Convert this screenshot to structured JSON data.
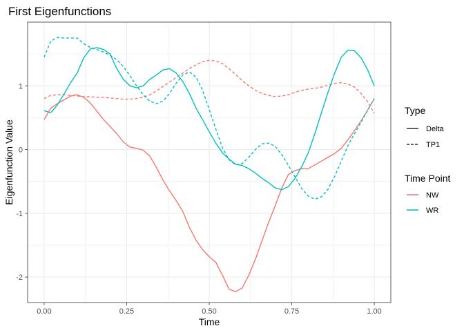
{
  "chart_data": {
    "type": "line",
    "title": "First Eigenfunctions",
    "xlabel": "Time",
    "ylabel": "Eigenfunction Value",
    "xlim": [
      -0.05,
      1.05
    ],
    "ylim": [
      -2.4,
      2.0
    ],
    "x_ticks": [
      0,
      0.25,
      0.5,
      0.75,
      1
    ],
    "x_tick_labels": [
      "0.00",
      "0.25",
      "0.50",
      "0.75",
      "1.00"
    ],
    "y_ticks": [
      -2,
      -1,
      0,
      1
    ],
    "y_tick_labels": [
      "-2",
      "-1",
      "0",
      "1"
    ],
    "grid": true,
    "legend_position": "right",
    "legend_linetype": {
      "title": "Type",
      "entries": [
        {
          "label": "Delta",
          "dash": "solid"
        },
        {
          "label": "TP1",
          "dash": "dashed"
        }
      ]
    },
    "legend_color": {
      "title": "Time Point",
      "entries": [
        {
          "label": "NW",
          "color": "#F8766D"
        },
        {
          "label": "WR",
          "color": "#00BFC4"
        }
      ]
    },
    "series": [
      {
        "time_point": "NW",
        "type": "Delta",
        "color": "#F8766D",
        "dash": "solid",
        "x": [
          0,
          0.02,
          0.04,
          0.06,
          0.08,
          0.1,
          0.12,
          0.14,
          0.16,
          0.18,
          0.2,
          0.22,
          0.24,
          0.26,
          0.28,
          0.3,
          0.32,
          0.34,
          0.36,
          0.38,
          0.4,
          0.42,
          0.44,
          0.46,
          0.48,
          0.5,
          0.52,
          0.54,
          0.56,
          0.58,
          0.6,
          0.62,
          0.64,
          0.66,
          0.68,
          0.7,
          0.72,
          0.74,
          0.76,
          0.78,
          0.8,
          0.82,
          0.84,
          0.86,
          0.88,
          0.9,
          0.92,
          0.94,
          0.96,
          0.98,
          1.0
        ],
        "y": [
          0.47,
          0.65,
          0.72,
          0.78,
          0.84,
          0.86,
          0.82,
          0.73,
          0.6,
          0.47,
          0.36,
          0.25,
          0.12,
          0.04,
          0.02,
          -0.01,
          -0.1,
          -0.28,
          -0.48,
          -0.65,
          -0.8,
          -0.97,
          -1.22,
          -1.42,
          -1.57,
          -1.68,
          -1.77,
          -1.97,
          -2.19,
          -2.23,
          -2.17,
          -1.97,
          -1.72,
          -1.43,
          -1.14,
          -0.88,
          -0.6,
          -0.39,
          -0.33,
          -0.3,
          -0.3,
          -0.24,
          -0.18,
          -0.12,
          -0.06,
          0.02,
          0.15,
          0.3,
          0.45,
          0.62,
          0.8
        ]
      },
      {
        "time_point": "NW",
        "type": "TP1",
        "color": "#F8766D",
        "dash": "dashed",
        "x": [
          0,
          0.02,
          0.04,
          0.06,
          0.08,
          0.1,
          0.12,
          0.14,
          0.16,
          0.18,
          0.2,
          0.22,
          0.24,
          0.26,
          0.28,
          0.3,
          0.32,
          0.34,
          0.36,
          0.38,
          0.4,
          0.42,
          0.44,
          0.46,
          0.48,
          0.5,
          0.52,
          0.54,
          0.56,
          0.58,
          0.6,
          0.62,
          0.64,
          0.66,
          0.68,
          0.7,
          0.72,
          0.74,
          0.76,
          0.78,
          0.8,
          0.82,
          0.84,
          0.86,
          0.88,
          0.9,
          0.92,
          0.94,
          0.96,
          0.98,
          1.0
        ],
        "y": [
          0.8,
          0.85,
          0.86,
          0.86,
          0.85,
          0.84,
          0.83,
          0.83,
          0.82,
          0.82,
          0.81,
          0.8,
          0.79,
          0.79,
          0.8,
          0.82,
          0.86,
          0.92,
          0.99,
          1.06,
          1.13,
          1.2,
          1.27,
          1.33,
          1.38,
          1.4,
          1.39,
          1.35,
          1.27,
          1.18,
          1.08,
          1.0,
          0.93,
          0.88,
          0.85,
          0.83,
          0.84,
          0.86,
          0.9,
          0.93,
          0.95,
          0.96,
          0.98,
          1.01,
          1.04,
          1.05,
          1.03,
          0.98,
          0.88,
          0.75,
          0.57
        ]
      },
      {
        "time_point": "WR",
        "type": "Delta",
        "color": "#00BFC4",
        "dash": "solid",
        "x": [
          0,
          0.02,
          0.04,
          0.06,
          0.08,
          0.1,
          0.12,
          0.14,
          0.16,
          0.18,
          0.2,
          0.22,
          0.24,
          0.26,
          0.28,
          0.3,
          0.32,
          0.34,
          0.36,
          0.38,
          0.4,
          0.42,
          0.44,
          0.46,
          0.48,
          0.5,
          0.52,
          0.54,
          0.56,
          0.58,
          0.6,
          0.62,
          0.64,
          0.66,
          0.68,
          0.7,
          0.72,
          0.74,
          0.76,
          0.78,
          0.8,
          0.82,
          0.84,
          0.86,
          0.88,
          0.9,
          0.92,
          0.94,
          0.96,
          0.98,
          1.0
        ],
        "y": [
          0.61,
          0.58,
          0.7,
          0.87,
          1.05,
          1.2,
          1.44,
          1.58,
          1.6,
          1.57,
          1.5,
          1.27,
          1.1,
          1.0,
          0.97,
          1.0,
          1.1,
          1.17,
          1.25,
          1.27,
          1.2,
          1.07,
          0.88,
          0.65,
          0.47,
          0.28,
          0.1,
          -0.05,
          -0.15,
          -0.23,
          -0.25,
          -0.3,
          -0.37,
          -0.45,
          -0.52,
          -0.6,
          -0.63,
          -0.58,
          -0.45,
          -0.27,
          -0.05,
          0.25,
          0.58,
          0.9,
          1.2,
          1.45,
          1.56,
          1.55,
          1.44,
          1.25,
          1.0
        ]
      },
      {
        "time_point": "WR",
        "type": "TP1",
        "color": "#00BFC4",
        "dash": "dashed",
        "x": [
          0,
          0.02,
          0.04,
          0.06,
          0.08,
          0.1,
          0.12,
          0.14,
          0.16,
          0.18,
          0.2,
          0.22,
          0.24,
          0.26,
          0.28,
          0.3,
          0.32,
          0.34,
          0.36,
          0.38,
          0.4,
          0.42,
          0.44,
          0.46,
          0.48,
          0.5,
          0.52,
          0.54,
          0.56,
          0.58,
          0.6,
          0.62,
          0.64,
          0.66,
          0.68,
          0.7,
          0.72,
          0.74,
          0.76,
          0.78,
          0.8,
          0.82,
          0.84,
          0.86,
          0.88,
          0.9,
          0.92,
          0.94,
          0.96,
          0.98,
          1.0
        ],
        "y": [
          1.45,
          1.7,
          1.76,
          1.75,
          1.75,
          1.75,
          1.66,
          1.6,
          1.57,
          1.53,
          1.48,
          1.41,
          1.3,
          1.16,
          1.0,
          0.86,
          0.76,
          0.72,
          0.76,
          0.88,
          1.04,
          1.17,
          1.22,
          1.14,
          0.93,
          0.63,
          0.32,
          0.03,
          -0.16,
          -0.24,
          -0.22,
          -0.12,
          0.0,
          0.09,
          0.1,
          0.05,
          -0.08,
          -0.25,
          -0.43,
          -0.61,
          -0.73,
          -0.78,
          -0.74,
          -0.62,
          -0.42,
          -0.18,
          0.06,
          0.25,
          0.43,
          0.62,
          0.8
        ]
      }
    ]
  }
}
